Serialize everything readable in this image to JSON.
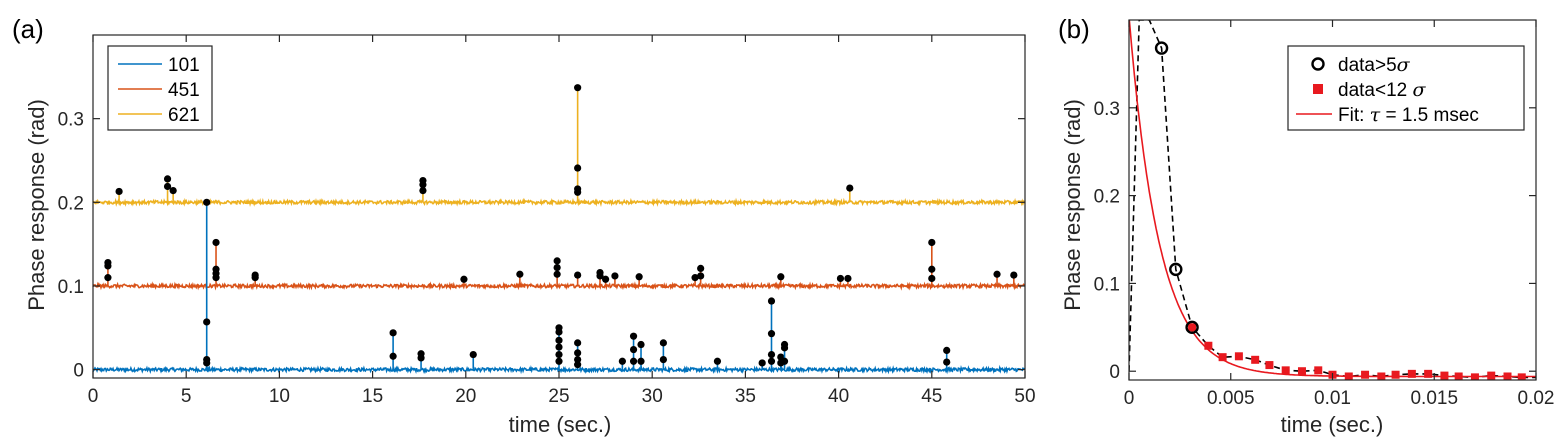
{
  "chart_data": [
    {
      "panel_label": "(a)",
      "type": "line",
      "xlabel": "time (sec.)",
      "ylabel": "Phase response (rad)",
      "xlim": [
        0,
        50
      ],
      "ylim": [
        -0.01,
        0.4
      ],
      "xticks": [
        0,
        5,
        10,
        15,
        20,
        25,
        30,
        35,
        40,
        45,
        50
      ],
      "yticks": [
        0,
        0.1,
        0.2,
        0.3
      ],
      "ytick_labels": [
        "0",
        "0.1",
        "0.2",
        "0.3"
      ],
      "grid": false,
      "legend_position": "top-left",
      "noise_amplitude": 0.002,
      "series": [
        {
          "name": "101",
          "color": "#0072BD",
          "baseline": 0,
          "events": [
            {
              "t": 6.1,
              "values": [
                0.2,
                0.057,
                0.012,
                0.008
              ]
            },
            {
              "t": 16.1,
              "values": [
                0.044,
                0.016
              ]
            },
            {
              "t": 17.6,
              "values": [
                0.019,
                0.014
              ]
            },
            {
              "t": 20.4,
              "values": [
                0.018
              ]
            },
            {
              "t": 25.0,
              "values": [
                0.05,
                0.045,
                0.035,
                0.027,
                0.018,
                0.01
              ]
            },
            {
              "t": 26.0,
              "values": [
                0.032,
                0.02,
                0.012,
                0.006
              ]
            },
            {
              "t": 28.4,
              "values": [
                0.01
              ]
            },
            {
              "t": 29.0,
              "values": [
                0.04,
                0.024,
                0.01
              ]
            },
            {
              "t": 29.4,
              "values": [
                0.03,
                0.01
              ]
            },
            {
              "t": 30.6,
              "values": [
                0.032,
                0.012
              ]
            },
            {
              "t": 33.5,
              "values": [
                0.01
              ]
            },
            {
              "t": 35.9,
              "values": [
                0.008
              ]
            },
            {
              "t": 36.4,
              "values": [
                0.082,
                0.043,
                0.018,
                0.01
              ]
            },
            {
              "t": 36.9,
              "values": [
                0.015,
                0.008
              ]
            },
            {
              "t": 37.1,
              "values": [
                0.03,
                0.026,
                0.01
              ]
            },
            {
              "t": 45.8,
              "values": [
                0.023,
                0.009
              ]
            }
          ]
        },
        {
          "name": "451",
          "color": "#D95319",
          "baseline": 0.1,
          "events": [
            {
              "t": 0.8,
              "values": [
                0.128,
                0.124,
                0.11
              ]
            },
            {
              "t": 6.6,
              "values": [
                0.152,
                0.12,
                0.115,
                0.11
              ]
            },
            {
              "t": 8.7,
              "values": [
                0.113,
                0.11
              ]
            },
            {
              "t": 19.9,
              "values": [
                0.108
              ]
            },
            {
              "t": 22.9,
              "values": [
                0.114
              ]
            },
            {
              "t": 24.9,
              "values": [
                0.13,
                0.122,
                0.114
              ]
            },
            {
              "t": 26.0,
              "values": [
                0.113
              ]
            },
            {
              "t": 27.2,
              "values": [
                0.116,
                0.112
              ]
            },
            {
              "t": 27.5,
              "values": [
                0.108
              ]
            },
            {
              "t": 28.0,
              "values": [
                0.112
              ]
            },
            {
              "t": 29.3,
              "values": [
                0.111
              ]
            },
            {
              "t": 32.3,
              "values": [
                0.11
              ]
            },
            {
              "t": 32.6,
              "values": [
                0.121,
                0.112
              ]
            },
            {
              "t": 36.9,
              "values": [
                0.111
              ]
            },
            {
              "t": 40.1,
              "values": [
                0.109
              ]
            },
            {
              "t": 40.5,
              "values": [
                0.109
              ]
            },
            {
              "t": 45.0,
              "values": [
                0.152,
                0.12,
                0.109
              ]
            },
            {
              "t": 48.5,
              "values": [
                0.114
              ]
            },
            {
              "t": 49.4,
              "values": [
                0.113
              ]
            }
          ]
        },
        {
          "name": "621",
          "color": "#EDB120",
          "baseline": 0.2,
          "events": [
            {
              "t": 1.4,
              "values": [
                0.213
              ]
            },
            {
              "t": 4.0,
              "values": [
                0.228,
                0.219
              ]
            },
            {
              "t": 4.3,
              "values": [
                0.214
              ]
            },
            {
              "t": 17.7,
              "values": [
                0.226,
                0.221,
                0.214
              ]
            },
            {
              "t": 26.0,
              "values": [
                0.337,
                0.241,
                0.216,
                0.212
              ]
            },
            {
              "t": 40.6,
              "values": [
                0.217
              ]
            }
          ]
        }
      ]
    },
    {
      "panel_label": "(b)",
      "type": "scatter",
      "xlabel": "time  (sec.)",
      "ylabel": "Phase response  (rad)",
      "xlim": [
        0,
        0.02
      ],
      "ylim": [
        -0.01,
        0.4
      ],
      "xticks": [
        0,
        0.005,
        0.01,
        0.015,
        0.02
      ],
      "xtick_labels": [
        "0",
        "0.005",
        "0.01",
        "0.015",
        "0.02"
      ],
      "yticks": [
        0,
        0.1,
        0.2,
        0.3
      ],
      "ytick_labels": [
        "0",
        "0.1",
        "0.2",
        "0.3"
      ],
      "grid": false,
      "legend_position": "top-right",
      "series": [
        {
          "name": "data>5",
          "sigma": "σ",
          "marker": "open-circle",
          "color": "#000000",
          "x": [
            0.0016,
            0.0023,
            0.0031
          ],
          "y": [
            0.368,
            0.116,
            0.05
          ]
        },
        {
          "name": "data<12 ",
          "sigma": "σ",
          "marker": "filled-square",
          "color": "#E8191F",
          "x": [
            0.0031,
            0.0039,
            0.0046,
            0.0054,
            0.0062,
            0.0069,
            0.0077,
            0.0085,
            0.0093,
            0.01,
            0.0108,
            0.0116,
            0.0124,
            0.0131,
            0.0139,
            0.0147,
            0.0155,
            0.0162,
            0.017,
            0.0178,
            0.0186,
            0.0193
          ],
          "y": [
            0.05,
            0.029,
            0.016,
            0.017,
            0.013,
            0.007,
            0.001,
            0.0,
            0.001,
            -0.004,
            -0.006,
            -0.004,
            -0.006,
            -0.004,
            -0.003,
            -0.003,
            -0.005,
            -0.006,
            -0.007,
            -0.005,
            -0.006,
            -0.007
          ]
        },
        {
          "name": "Fit: ",
          "name_suffix": " = 1.5 msec",
          "tau_symbol": "τ",
          "line": "solid",
          "color": "#E8191F",
          "tau": 0.0015,
          "amplitude": 0.41,
          "offset": -0.006
        },
        {
          "name": "",
          "line": "dashed",
          "color": "#000000",
          "x": [
            0,
            0.0005,
            0.001,
            0.0016,
            0.0023,
            0.0031,
            0.0039,
            0.0046,
            0.0054,
            0.0062,
            0.0069,
            0.0077,
            0.0085,
            0.0093,
            0.01,
            0.0108,
            0.0116,
            0.0124,
            0.0131,
            0.0139,
            0.0147,
            0.0155,
            0.0162,
            0.017,
            0.0178,
            0.0186,
            0.0193,
            0.02
          ],
          "y": [
            0.0,
            0.4,
            0.4,
            0.368,
            0.116,
            0.05,
            0.029,
            0.016,
            0.017,
            0.013,
            0.007,
            0.001,
            0.0,
            0.001,
            -0.004,
            -0.006,
            -0.004,
            -0.006,
            -0.004,
            -0.003,
            -0.003,
            -0.005,
            -0.006,
            -0.007,
            -0.005,
            -0.006,
            -0.007,
            -0.007
          ]
        }
      ]
    }
  ]
}
